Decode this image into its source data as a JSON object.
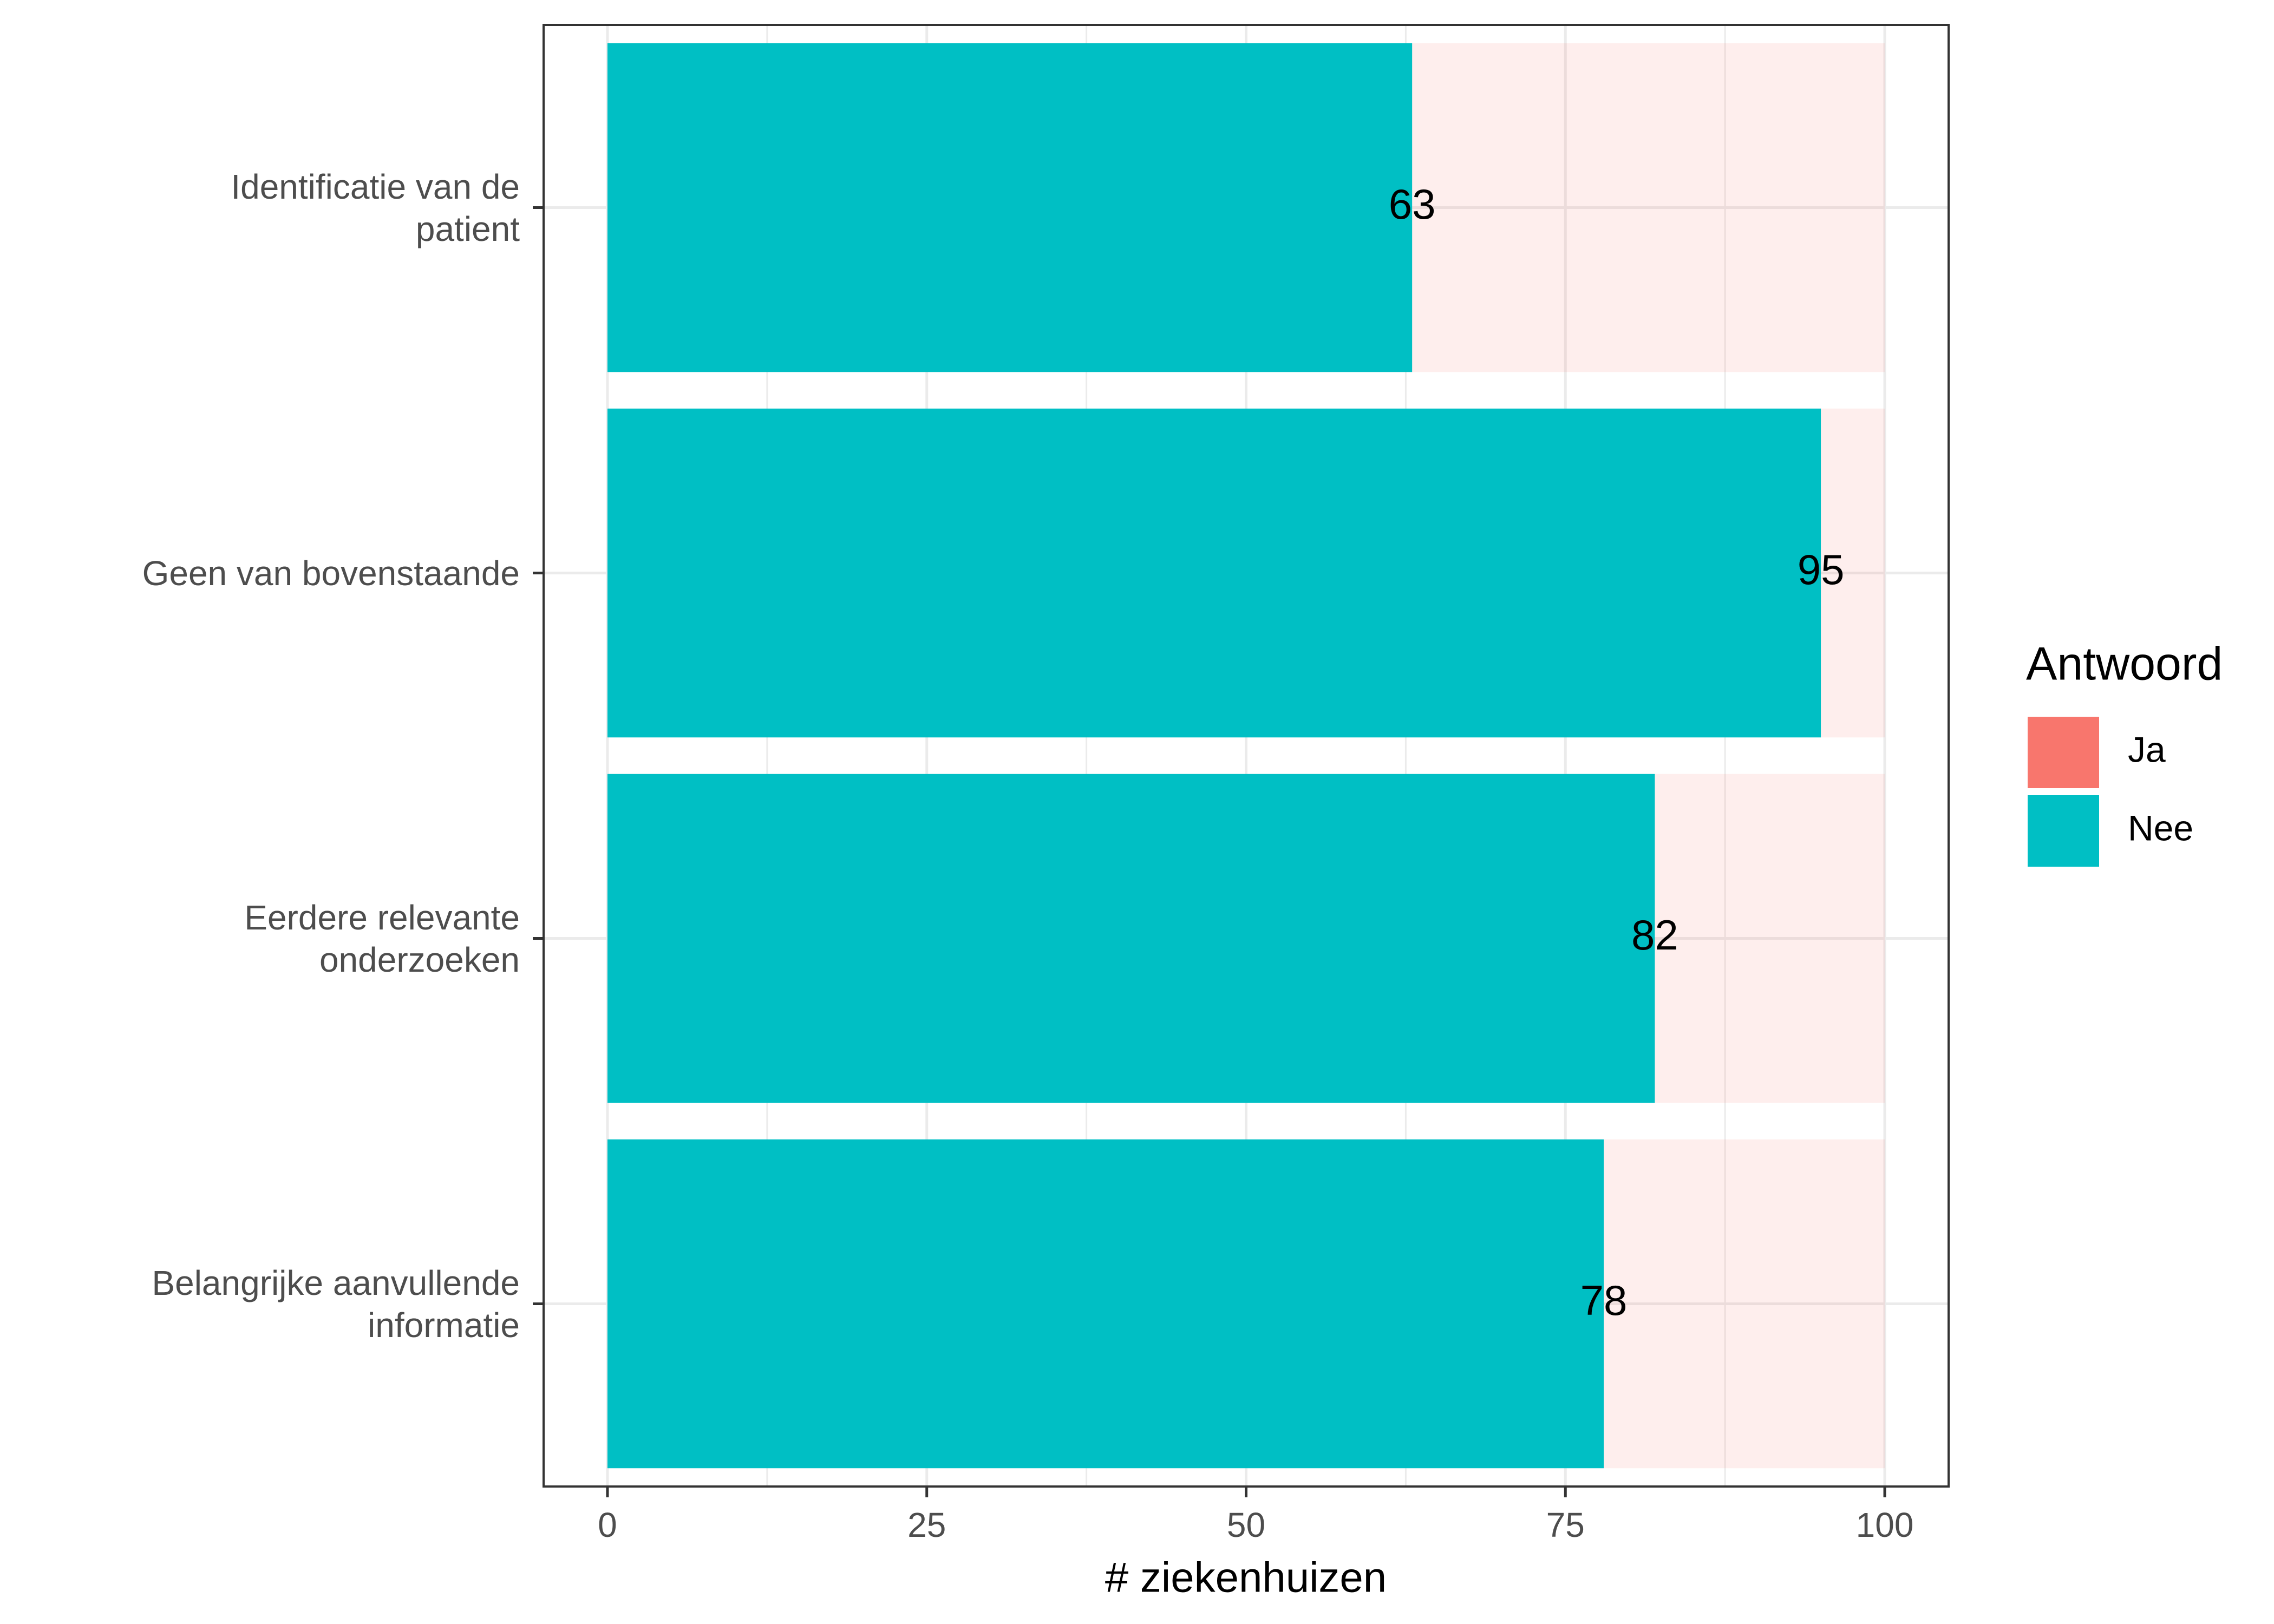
{
  "chart_data": {
    "type": "bar",
    "orientation": "horizontal",
    "stacked": true,
    "x_label": "# ziekenhuizen",
    "categories": [
      "Identificatie van de\npatient",
      "Geen van bovenstaande",
      "Eerdere relevante\nonderzoeken",
      "Belangrijke aanvullende\ninformatie"
    ],
    "series": [
      {
        "name": "Nee",
        "color": "#00BFC4",
        "values": [
          63,
          95,
          82,
          78
        ]
      },
      {
        "name": "Ja",
        "color": "#F8766D",
        "values": [
          37,
          5,
          18,
          22
        ]
      }
    ],
    "data_labels_series": 0,
    "xlim": [
      -5,
      105
    ],
    "xticks": [
      0,
      25,
      50,
      75,
      100
    ],
    "grid": true,
    "legend_title": "Antwoord",
    "legend_position": "right"
  }
}
